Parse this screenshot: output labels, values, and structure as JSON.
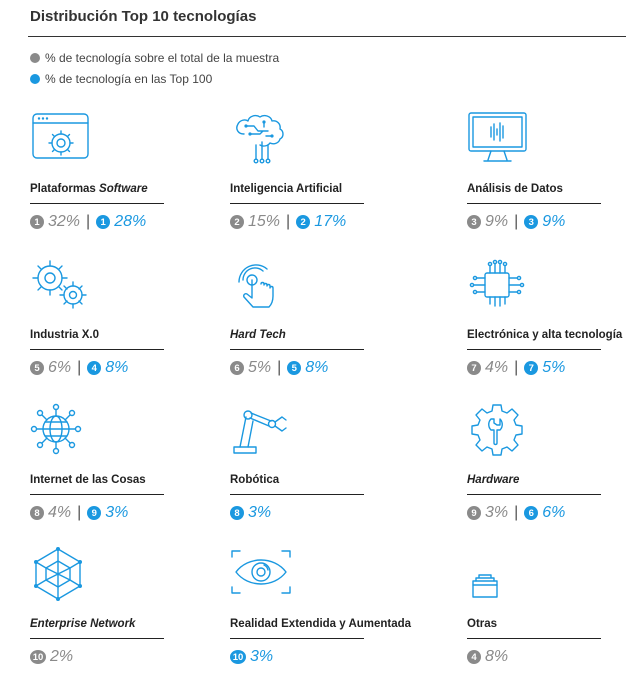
{
  "title": "Distribución Top 10 tecnologías",
  "legend": {
    "gray": "% de tecnología sobre el total de la muestra",
    "blue": "% de tecnología en las Top 100"
  },
  "colors": {
    "gray": "#8a8a8a",
    "blue": "#1a98e0"
  },
  "items": [
    {
      "label": "Plataformas ",
      "label_italic": "Software",
      "icon": "software-platform-gear-icon",
      "gray_rank": "1",
      "gray_pct": "32%",
      "blue_rank": "1",
      "blue_pct": "28%"
    },
    {
      "label": "Inteligencia Artificial",
      "icon": "ai-brain-circuit-icon",
      "gray_rank": "2",
      "gray_pct": "15%",
      "blue_rank": "2",
      "blue_pct": "17%"
    },
    {
      "label": "Análisis de Datos",
      "icon": "data-monitor-icon",
      "gray_rank": "3",
      "gray_pct": "9%",
      "blue_rank": "3",
      "blue_pct": "9%"
    },
    {
      "label": "Industria X.0",
      "icon": "gears-icon",
      "gray_rank": "5",
      "gray_pct": "6%",
      "blue_rank": "4",
      "blue_pct": "8%"
    },
    {
      "label": "Hard Tech",
      "icon": "touch-hand-icon",
      "gray_rank": "6",
      "gray_pct": "5%",
      "blue_rank": "5",
      "blue_pct": "8%"
    },
    {
      "label": "Electrónica y alta tecnología",
      "icon": "chip-icon",
      "gray_rank": "7",
      "gray_pct": "4%",
      "blue_rank": "7",
      "blue_pct": "5%"
    },
    {
      "label": "Internet de las Cosas",
      "icon": "iot-globe-icon",
      "gray_rank": "8",
      "gray_pct": "4%",
      "blue_rank": "9",
      "blue_pct": "3%"
    },
    {
      "label": "Robótica",
      "icon": "robot-arm-icon",
      "blue_rank": "8",
      "blue_pct": "3%"
    },
    {
      "label": "Hardware",
      "icon": "wrench-gear-icon",
      "gray_rank": "9",
      "gray_pct": "3%",
      "blue_rank": "6",
      "blue_pct": "6%"
    },
    {
      "label": "Enterprise Network",
      "icon": "network-icon",
      "gray_rank": "10",
      "gray_pct": "2%"
    },
    {
      "label": "Realidad Extendida y Aumentada",
      "icon": "eye-icon",
      "blue_rank": "10",
      "blue_pct": "3%"
    },
    {
      "label": "Otras",
      "icon": "folders-icon",
      "gray_rank": "4",
      "gray_pct": "8%"
    }
  ]
}
